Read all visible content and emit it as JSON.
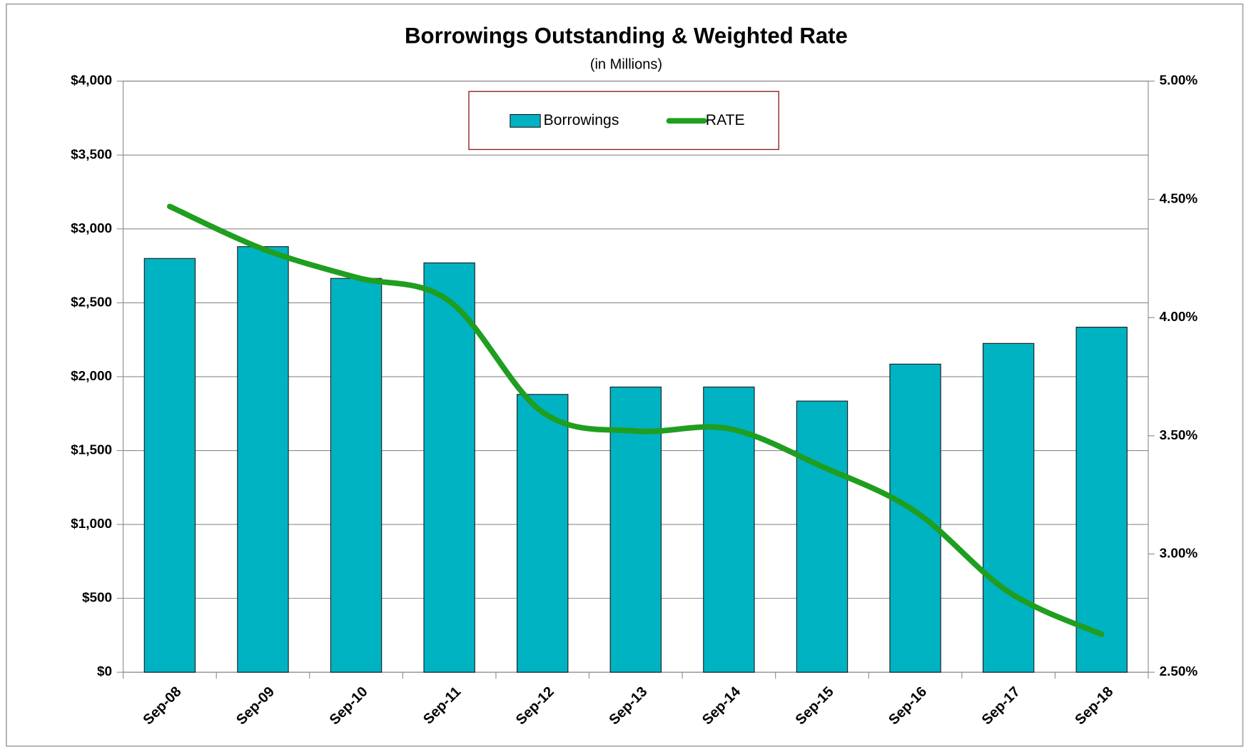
{
  "chart_data": {
    "type": "bar_line",
    "title": "Borrowings Outstanding & Weighted Rate",
    "subtitle": "(in Millions)",
    "categories": [
      "Sep-08",
      "Sep-09",
      "Sep-10",
      "Sep-11",
      "Sep-12",
      "Sep-13",
      "Sep-14",
      "Sep-15",
      "Sep-16",
      "Sep-17",
      "Sep-18"
    ],
    "series": [
      {
        "name": "Borrowings",
        "type": "bar",
        "color": "#00b3c3",
        "values": [
          2800,
          2880,
          2665,
          2770,
          1880,
          1930,
          1930,
          1835,
          2085,
          2225,
          2335
        ]
      },
      {
        "name": "RATE",
        "type": "line",
        "axis": "y2",
        "color": "#1f9e1f",
        "values": [
          4.47,
          4.29,
          4.17,
          4.07,
          3.6,
          3.52,
          3.53,
          3.37,
          3.18,
          2.84,
          2.66
        ]
      }
    ],
    "ylim": [
      0,
      4000
    ],
    "yticks": [
      {
        "value": 0,
        "label": "$0"
      },
      {
        "value": 500,
        "label": "$500"
      },
      {
        "value": 1000,
        "label": "$1,000"
      },
      {
        "value": 1500,
        "label": "$1,500"
      },
      {
        "value": 2000,
        "label": "$2,000"
      },
      {
        "value": 2500,
        "label": "$2,500"
      },
      {
        "value": 3000,
        "label": "$3,000"
      },
      {
        "value": 3500,
        "label": "$3,500"
      },
      {
        "value": 4000,
        "label": "$4,000"
      }
    ],
    "y2lim": [
      2.5,
      5.0
    ],
    "y2ticks": [
      {
        "value": 2.5,
        "label": "2.50%"
      },
      {
        "value": 3.0,
        "label": "3.00%"
      },
      {
        "value": 3.5,
        "label": "3.50%"
      },
      {
        "value": 4.0,
        "label": "4.00%"
      },
      {
        "value": 4.5,
        "label": "4.50%"
      },
      {
        "value": 5.0,
        "label": "5.00%"
      }
    ],
    "grid": true,
    "legend": "top"
  }
}
